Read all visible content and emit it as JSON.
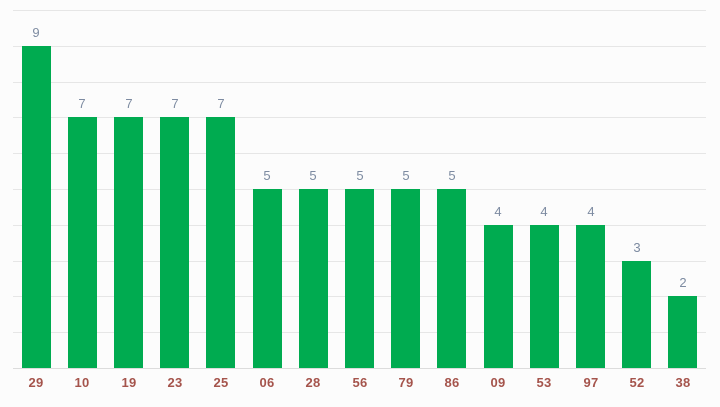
{
  "chart": {
    "colors": {
      "background": "#fcfcfc",
      "bar": "#00ab50",
      "gridline": "#e6e6e6",
      "baseline": "#dcdcdc",
      "value_label": "#7d8ba1",
      "category_label": "#a5544c"
    }
  },
  "chart_data": {
    "type": "bar",
    "categories": [
      "29",
      "10",
      "19",
      "23",
      "25",
      "06",
      "28",
      "56",
      "79",
      "86",
      "09",
      "53",
      "97",
      "52",
      "38"
    ],
    "values": [
      9,
      7,
      7,
      7,
      7,
      5,
      5,
      5,
      5,
      5,
      4,
      4,
      4,
      3,
      2
    ],
    "title": "",
    "xlabel": "",
    "ylabel": "",
    "ylim": [
      0,
      10
    ],
    "grid": true,
    "gridline_step": 1,
    "legend": "none",
    "value_labels_shown": true,
    "y_axis_labels_shown": false
  }
}
